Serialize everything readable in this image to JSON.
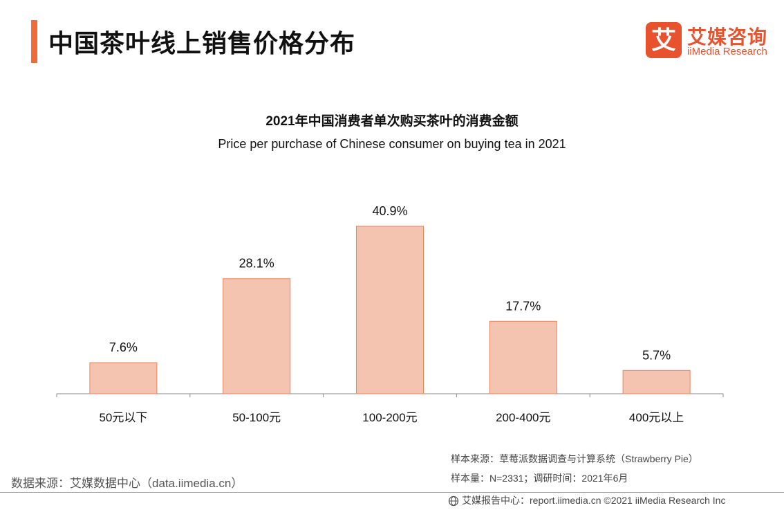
{
  "header": {
    "title": "中国茶叶线上销售价格分布",
    "logo_mark": "艾",
    "logo_cn": "艾媒咨询",
    "logo_en": "iiMedia Research",
    "accent_color": "#f06a3a",
    "brand_color": "#e8522d"
  },
  "chart_data": {
    "type": "bar",
    "title": "2021年中国消费者单次购买茶叶的消费金额",
    "subtitle": "Price per purchase of Chinese consumer on buying tea in 2021",
    "categories": [
      "50元以下",
      "50-100元",
      "100-200元",
      "200-400元",
      "400元以上"
    ],
    "values": [
      7.6,
      28.1,
      40.9,
      17.7,
      5.7
    ],
    "data_labels": [
      "7.6%",
      "28.1%",
      "40.9%",
      "17.7%",
      "5.7%"
    ],
    "ylim": [
      0,
      45
    ],
    "grid": false,
    "bar_color": "#f5c4b0",
    "bar_border_color": "#e8845a"
  },
  "footer": {
    "source_left": "数据来源：艾媒数据中心（data.iimedia.cn）",
    "sample_source": "样本来源：草莓派数据调查与计算系统（Strawberry Pie）",
    "sample_size": "样本量：N=2331；调研时间：2021年6月",
    "bottom_line": "艾媒报告中心：report.iimedia.cn  ©2021  iiMedia Research  Inc"
  }
}
